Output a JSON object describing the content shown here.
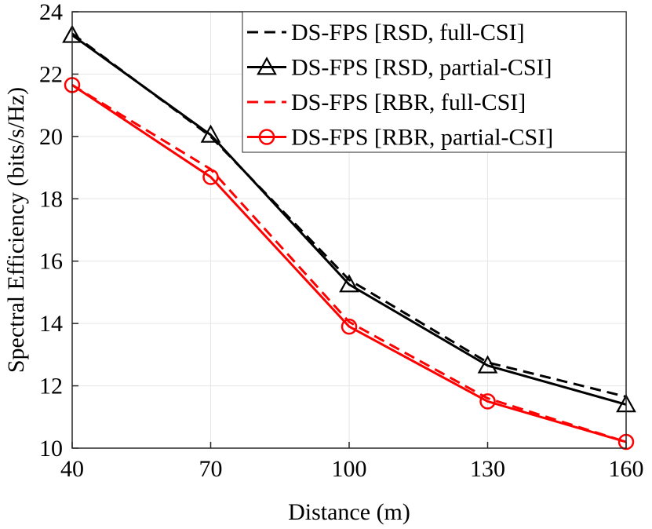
{
  "chart_data": {
    "type": "line",
    "title": "",
    "xlabel": "Distance (m)",
    "ylabel": "Spectral Efficiency (bits/s/Hz)",
    "x": [
      40,
      70,
      100,
      130,
      160
    ],
    "xlim": [
      40,
      160
    ],
    "ylim": [
      10,
      24
    ],
    "xticks": [
      40,
      70,
      100,
      130,
      160
    ],
    "yticks": [
      10,
      12,
      14,
      16,
      18,
      20,
      22,
      24
    ],
    "grid": true,
    "legend_position": "top-right",
    "series": [
      {
        "name": "DS-FPS [RSD, full-CSI]",
        "values": [
          23.3,
          20.0,
          15.4,
          12.75,
          11.65
        ],
        "color": "#000000",
        "dash": "dashed",
        "marker": "none"
      },
      {
        "name": "DS-FPS [RSD, partial-CSI]",
        "values": [
          23.25,
          20.05,
          15.25,
          12.65,
          11.4
        ],
        "color": "#000000",
        "dash": "solid",
        "marker": "triangle"
      },
      {
        "name": "DS-FPS [RBR, full-CSI]",
        "values": [
          21.65,
          18.95,
          14.05,
          11.6,
          10.2
        ],
        "color": "#ff0000",
        "dash": "dashed",
        "marker": "none"
      },
      {
        "name": "DS-FPS [RBR, partial-CSI]",
        "values": [
          21.65,
          18.7,
          13.9,
          11.5,
          10.2
        ],
        "color": "#ff0000",
        "dash": "solid",
        "marker": "circle"
      }
    ]
  }
}
